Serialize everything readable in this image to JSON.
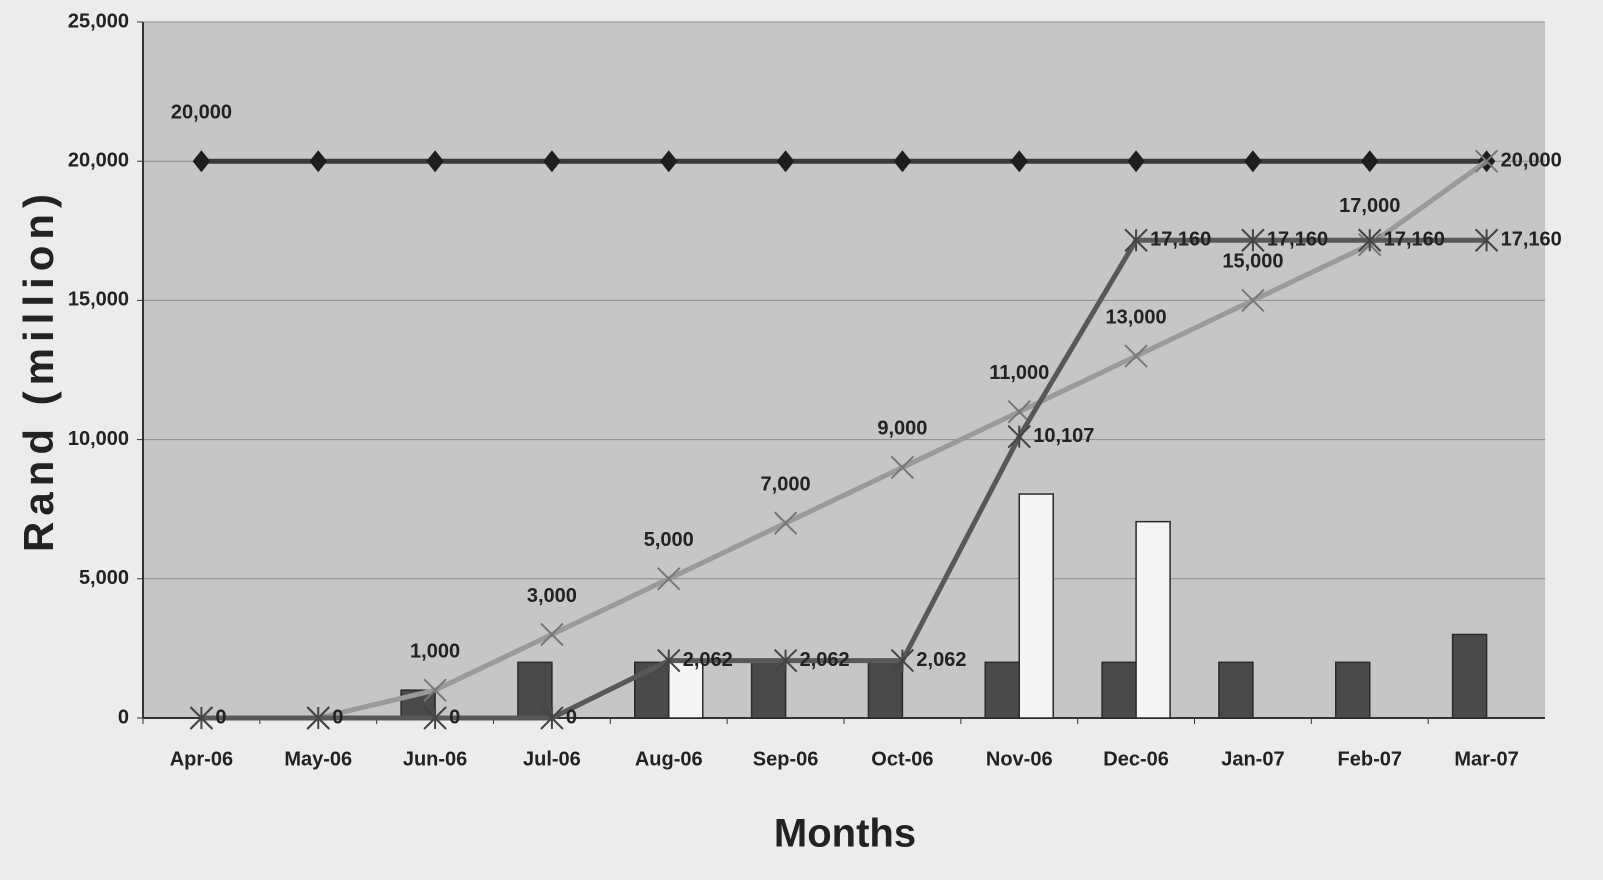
{
  "chart_data": {
    "type": "combo",
    "x_label": "Months",
    "y_label": "Rand (million)",
    "categories": [
      "Apr-06",
      "May-06",
      "Jun-06",
      "Jul-06",
      "Aug-06",
      "Sep-06",
      "Oct-06",
      "Nov-06",
      "Dec-06",
      "Jan-07",
      "Feb-07",
      "Mar-07"
    ],
    "ylim": [
      0,
      25000
    ],
    "yticks": [
      0,
      {
        "value": 5000,
        "label": "5,000"
      },
      {
        "value": 10000,
        "label": "10,000"
      },
      {
        "value": 15000,
        "label": "15,000"
      },
      {
        "value": 20000,
        "label": "20,000"
      },
      {
        "value": 25000,
        "label": "25,000"
      }
    ],
    "grid": true,
    "series": [
      {
        "type": "bar",
        "color": "#4a4a4a",
        "values": [
          null,
          null,
          1000,
          2000,
          2000,
          2000,
          2000,
          2000,
          2000,
          2000,
          2000,
          3000
        ]
      },
      {
        "type": "bar",
        "color": "#f4f4f4",
        "values": [
          null,
          null,
          null,
          null,
          2062,
          null,
          null,
          8045,
          7053,
          null,
          null,
          null
        ]
      },
      {
        "type": "line",
        "marker": "diamond",
        "color": "#3a3a3a",
        "values": [
          20000,
          20000,
          20000,
          20000,
          20000,
          20000,
          20000,
          20000,
          20000,
          20000,
          20000,
          20000
        ],
        "value_labels": [
          "20,000",
          null,
          null,
          null,
          null,
          null,
          null,
          null,
          null,
          null,
          null,
          "20,000"
        ]
      },
      {
        "type": "line",
        "marker": "x",
        "color": "#9a9a9a",
        "values": [
          0,
          0,
          1000,
          3000,
          5000,
          7000,
          9000,
          11000,
          13000,
          15000,
          17000,
          20000
        ],
        "value_labels": [
          null,
          null,
          "1,000",
          "3,000",
          "5,000",
          "7,000",
          "9,000",
          "11,000",
          "13,000",
          "15,000",
          "17,000",
          null
        ]
      },
      {
        "type": "line",
        "marker": "asterisk",
        "color": "#585858",
        "values": [
          0,
          0,
          0,
          0,
          2062,
          2062,
          2062,
          10107,
          17160,
          17160,
          17160,
          17160
        ],
        "value_labels": [
          "0",
          "0",
          "0",
          "0",
          "2,062",
          "2,062",
          "2,062",
          "10,107",
          "17,160",
          "17,160",
          "17,160",
          "17,160"
        ]
      }
    ]
  }
}
